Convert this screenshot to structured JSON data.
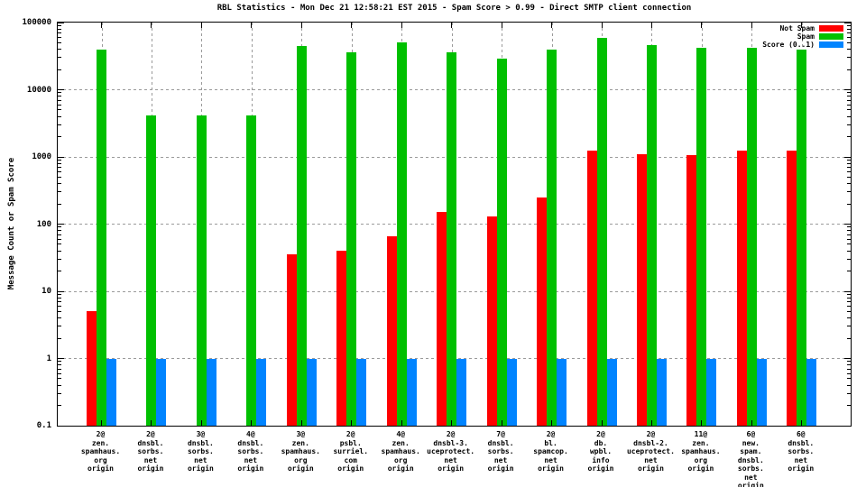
{
  "title": "RBL Statistics - Mon Dec 21 12:58:21 EST 2015 - Spam Score > 0.99 - Direct SMTP client connection",
  "colors": {
    "not_spam": "#ff0000",
    "spam": "#00c000",
    "score": "#0084ff",
    "grid": "#9a9a9a",
    "axis": "#000000",
    "background": "#ffffff"
  },
  "chart_data": {
    "type": "bar",
    "title": "RBL Statistics - Mon Dec 21 12:58:21 EST 2015 - Spam Score > 0.99 - Direct SMTP client connection",
    "xlabel": "",
    "ylabel": "Message Count or Spam Score",
    "y_scale": "log",
    "ylim": [
      0.1,
      100000
    ],
    "y_tick_labels": [
      "100000",
      "10000",
      "1000",
      "100",
      "10",
      "1",
      "0.1"
    ],
    "grid": true,
    "legend_position": "top-right-inside",
    "categories": [
      [
        "2@",
        "zen.",
        "spamhaus.",
        "org",
        "origin"
      ],
      [
        "2@",
        "dnsbl.",
        "sorbs.",
        "net",
        "origin"
      ],
      [
        "3@",
        "dnsbl.",
        "sorbs.",
        "net",
        "origin"
      ],
      [
        "4@",
        "dnsbl.",
        "sorbs.",
        "net",
        "origin"
      ],
      [
        "3@",
        "zen.",
        "spamhaus.",
        "org",
        "origin"
      ],
      [
        "2@",
        "psbl.",
        "surriel.",
        "com",
        "origin"
      ],
      [
        "4@",
        "zen.",
        "spamhaus.",
        "org",
        "origin"
      ],
      [
        "2@",
        "dnsbl-3.",
        "uceprotect.",
        "net",
        "origin"
      ],
      [
        "7@",
        "dnsbl.",
        "sorbs.",
        "net",
        "origin"
      ],
      [
        "2@",
        "bl.",
        "spamcop.",
        "net",
        "origin"
      ],
      [
        "2@",
        "db.",
        "wpbl.",
        "info",
        "origin"
      ],
      [
        "2@",
        "dnsbl-2.",
        "uceprotect.",
        "net",
        "origin"
      ],
      [
        "11@",
        "zen.",
        "spamhaus.",
        "org",
        "origin"
      ],
      [
        "6@",
        "new.",
        "spam.",
        "dnsbl.",
        "sorbs.",
        "net",
        "origin"
      ],
      [
        "6@",
        "dnsbl.",
        "sorbs.",
        "net",
        "origin"
      ]
    ],
    "series": [
      {
        "name": "Not Spam",
        "color": "#ff0000",
        "values": [
          5,
          0,
          0,
          0,
          35,
          40,
          65,
          150,
          130,
          250,
          1250,
          1100,
          1050,
          1250,
          1250
        ]
      },
      {
        "name": "Spam",
        "color": "#00c000",
        "values": [
          40000,
          4100,
          4100,
          4100,
          45000,
          36000,
          50000,
          36000,
          29000,
          40000,
          60000,
          46000,
          42000,
          42000,
          40000
        ]
      },
      {
        "name": "Score (0..1)",
        "color": "#0084ff",
        "values": [
          0.99,
          0.99,
          0.99,
          0.99,
          0.99,
          0.99,
          0.99,
          0.99,
          0.99,
          0.99,
          0.99,
          0.99,
          0.99,
          0.99,
          0.99
        ]
      }
    ]
  }
}
